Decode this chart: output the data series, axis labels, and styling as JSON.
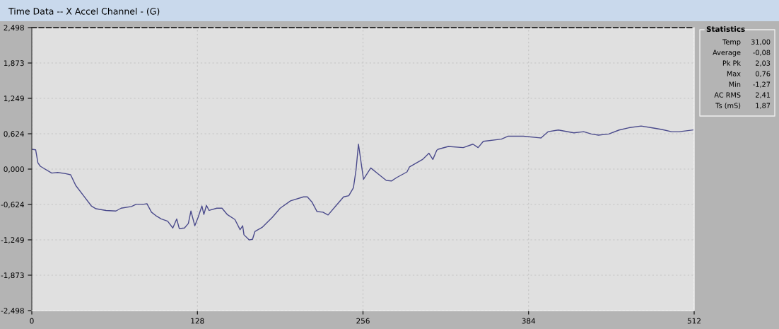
{
  "chart_data": {
    "type": "line",
    "title": "Time Data -- X Accel Channel - (G)",
    "x": [
      0,
      3,
      4.7,
      6.6,
      15.4,
      20,
      26,
      30,
      34,
      40,
      46,
      49.6,
      57.4,
      65,
      69,
      77,
      80.8,
      86.7,
      89,
      92.5,
      96.4,
      100,
      105,
      109,
      112,
      114,
      118,
      121,
      123,
      126,
      128.6,
      131.5,
      133,
      135,
      137,
      143,
      147,
      151,
      157,
      161,
      163,
      164,
      168,
      170.6,
      172.5,
      178,
      186,
      192,
      200,
      210,
      213,
      216.5,
      220.5,
      225,
      229,
      235,
      241,
      245,
      248.6,
      250.6,
      252.5,
      256.4,
      262,
      268,
      274,
      278,
      282,
      290,
      292,
      302,
      307,
      310,
      313,
      314,
      322,
      333.5,
      341,
      345,
      349,
      363,
      368,
      380,
      393.6,
      399,
      407,
      419,
      426.6,
      432.5,
      438,
      446,
      454,
      461.5,
      471,
      479,
      487,
      494.5,
      500.5,
      511
    ],
    "series": [
      {
        "color": "#4b4b8c",
        "values": [
          0.35,
          0.34,
          0.11,
          0.05,
          -0.07,
          -0.06,
          -0.08,
          -0.1,
          -0.29,
          -0.47,
          -0.65,
          -0.7,
          -0.73,
          -0.74,
          -0.69,
          -0.66,
          -0.62,
          -0.62,
          -0.61,
          -0.76,
          -0.83,
          -0.88,
          -0.92,
          -1.04,
          -0.88,
          -1.05,
          -1.04,
          -0.96,
          -0.74,
          -1.0,
          -0.85,
          -0.65,
          -0.8,
          -0.64,
          -0.73,
          -0.69,
          -0.69,
          -0.8,
          -0.89,
          -1.07,
          -1.0,
          -1.16,
          -1.25,
          -1.24,
          -1.1,
          -1.03,
          -0.85,
          -0.69,
          -0.56,
          -0.49,
          -0.49,
          -0.58,
          -0.75,
          -0.76,
          -0.81,
          -0.65,
          -0.49,
          -0.47,
          -0.33,
          -0.02,
          0.44,
          -0.18,
          0.02,
          -0.09,
          -0.2,
          -0.21,
          -0.15,
          -0.05,
          0.04,
          0.17,
          0.28,
          0.17,
          0.33,
          0.35,
          0.4,
          0.38,
          0.44,
          0.38,
          0.49,
          0.53,
          0.58,
          0.58,
          0.55,
          0.66,
          0.69,
          0.64,
          0.66,
          0.62,
          0.6,
          0.62,
          0.69,
          0.73,
          0.76,
          0.73,
          0.7,
          0.66,
          0.66,
          0.69
        ]
      }
    ],
    "xlim": [
      0,
      512
    ],
    "xticks": [
      0,
      128,
      256,
      384,
      512
    ],
    "ylim": [
      -2.498,
      2.498
    ],
    "yticks": [
      {
        "value": -2.498,
        "label": "-2,498"
      },
      {
        "value": -1.873,
        "label": "-1,873"
      },
      {
        "value": -1.249,
        "label": "-1,249"
      },
      {
        "value": -0.624,
        "label": "-0,624"
      },
      {
        "value": 0,
        "label": "0,000"
      },
      {
        "value": 0.624,
        "label": "0,624"
      },
      {
        "value": 1.249,
        "label": "1,249"
      },
      {
        "value": 1.873,
        "label": "1,873"
      },
      {
        "value": 2.498,
        "label": "2,498"
      }
    ],
    "grid": true,
    "line_style": "solid",
    "marker": "none",
    "annotations": [
      "Statistics",
      "Temp",
      "31,00",
      "Average",
      "-0,08",
      "Pk Pk",
      "2,03",
      "Max",
      "0,76",
      "Min",
      "-1,27",
      "AC RMS",
      "2,41",
      "Ts (mS)",
      "1,87"
    ]
  }
}
